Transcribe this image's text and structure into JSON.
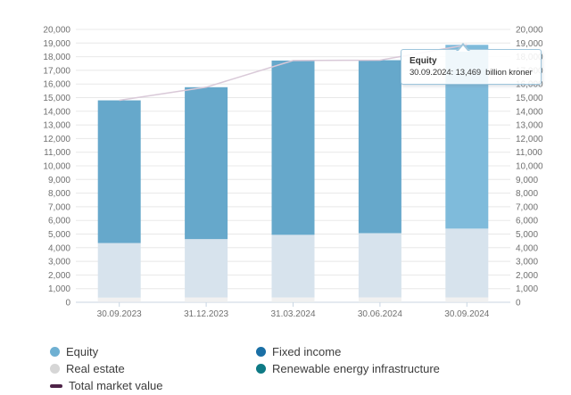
{
  "chart_data": {
    "type": "bar",
    "subtype": "stacked-column-with-total-line",
    "title": "",
    "unit": "billion kroner",
    "categories": [
      "30.09.2023",
      "31.12.2023",
      "31.03.2024",
      "30.06.2024",
      "30.09.2024"
    ],
    "series": [
      {
        "name": "Equity",
        "type": "column",
        "color": "#6FB0D2",
        "bar_color": "#66A8CB",
        "hover_color": "#7FBBDB",
        "state": "highlighted",
        "values": [
          10460,
          11135,
          12775,
          12678,
          13469
        ]
      },
      {
        "name": "Fixed income",
        "type": "column",
        "color": "#1A6FA5",
        "bar_color": "#D7E3ED",
        "state": "dimmed",
        "values": [
          4000,
          4275,
          4590,
          4710,
          5045
        ]
      },
      {
        "name": "Real estate",
        "type": "column",
        "color": "#D6D6D6",
        "bar_color": "#F1F1F1",
        "state": "dimmed",
        "values": [
          326,
          344,
          335,
          337,
          335
        ]
      },
      {
        "name": "Renewable energy infrastructure",
        "type": "column",
        "color": "#0E7A85",
        "bar_color": "#E3EDEE",
        "state": "dimmed",
        "values": [
          15,
          11,
          19,
          20,
          21
        ]
      },
      {
        "name": "Total market value",
        "type": "line",
        "color": "#4D2347",
        "line_color": "#D9C9D8",
        "state": "dimmed",
        "values": [
          14801,
          15765,
          17719,
          17745,
          18870
        ]
      }
    ],
    "stack_order_bottom_to_top": [
      "Renewable energy infrastructure",
      "Real estate",
      "Fixed income",
      "Equity"
    ],
    "yaxis": {
      "min": 0,
      "max": 20000,
      "step": 1000,
      "labels_on_both_sides": true,
      "tick_label_format": "thousands-comma"
    },
    "grid": true,
    "legend_position": "bottom",
    "hovered_point": {
      "series": "Equity",
      "category": "30.09.2024",
      "value": 13469
    }
  },
  "tooltip": {
    "title": "Equity",
    "body": "30.09.2024: 13,469  billion kroner"
  },
  "legend": {
    "columns": [
      [
        {
          "label": "Equity",
          "marker": "circle",
          "color": "#6FB0D2"
        },
        {
          "label": "Real estate",
          "marker": "circle",
          "color": "#D6D6D6"
        },
        {
          "label": "Total market value",
          "marker": "line",
          "color": "#4D2347"
        }
      ],
      [
        {
          "label": "Fixed income",
          "marker": "circle",
          "color": "#1A6FA5"
        },
        {
          "label": "Renewable energy infrastructure",
          "marker": "circle",
          "color": "#0E7A85"
        }
      ]
    ]
  },
  "colors": {
    "grid_line": "#E8E8E8",
    "axis_line": "#C9D6E2",
    "axis_label": "#707070",
    "legend_text": "#3C3C3C",
    "tooltip_border": "#9FC6DC",
    "tooltip_text": "#333333"
  }
}
